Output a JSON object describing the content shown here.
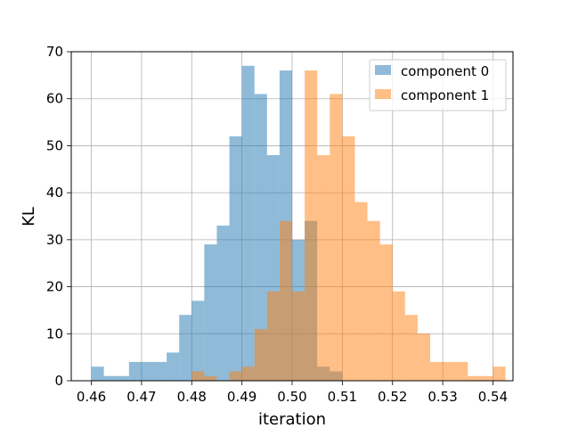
{
  "chart_data": {
    "type": "histogram",
    "title": "",
    "xlabel": "iteration",
    "ylabel": "KL",
    "xlim": [
      0.456,
      0.544
    ],
    "ylim": [
      0,
      70
    ],
    "xticks": [
      "0.46",
      "0.47",
      "0.48",
      "0.49",
      "0.50",
      "0.51",
      "0.52",
      "0.53",
      "0.54"
    ],
    "yticks": [
      "0",
      "10",
      "20",
      "30",
      "40",
      "50",
      "60",
      "70"
    ],
    "grid": true,
    "legend": "top-right",
    "series": [
      {
        "name": "component 0",
        "color": "#1f77b4",
        "alpha": 0.5,
        "bin_start": 0.46,
        "bin_width": 0.0025,
        "counts": [
          3,
          1,
          1,
          4,
          4,
          4,
          6,
          14,
          17,
          29,
          33,
          52,
          67,
          61,
          48,
          66,
          30,
          34,
          3,
          2
        ]
      },
      {
        "name": "component 1",
        "color": "#ff7f0e",
        "alpha": 0.5,
        "bin_start": 0.48,
        "bin_width": 0.0025,
        "counts": [
          2,
          1,
          0,
          2,
          3,
          11,
          19,
          34,
          19,
          66,
          48,
          61,
          52,
          38,
          34,
          29,
          19,
          14,
          10,
          4,
          4,
          4,
          1,
          1,
          3
        ]
      }
    ]
  }
}
